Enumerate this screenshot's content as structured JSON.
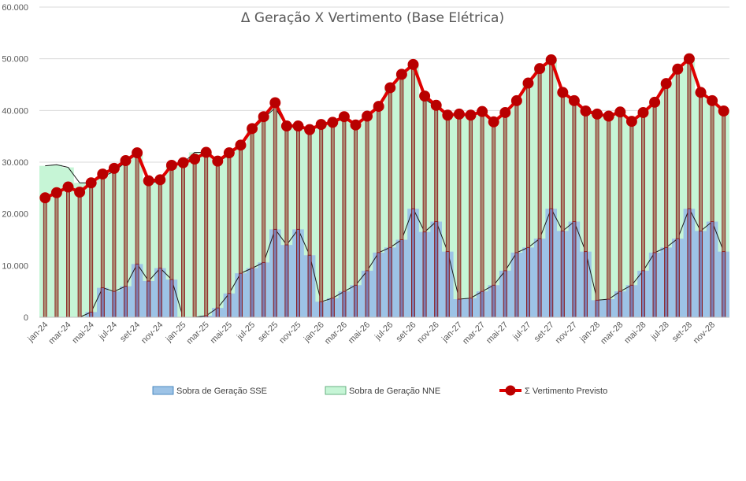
{
  "chart_data": {
    "type": "area",
    "title": "Δ Geração X Vertimento (Base Elétrica)",
    "ylim": [
      0,
      60000
    ],
    "yticks": [
      "0",
      "10.000",
      "20.000",
      "30.000",
      "40.000",
      "50.000",
      "60.000"
    ],
    "ytick_values": [
      0,
      10000,
      20000,
      30000,
      40000,
      50000,
      60000
    ],
    "grid": true,
    "legend_position": "bottom",
    "categories": [
      "jan-24",
      "fev-24",
      "mar-24",
      "abr-24",
      "mai-24",
      "jun-24",
      "jul-24",
      "ago-24",
      "set-24",
      "out-24",
      "nov-24",
      "dez-24",
      "jan-25",
      "fev-25",
      "mar-25",
      "abr-25",
      "mai-25",
      "jun-25",
      "jul-25",
      "ago-25",
      "set-25",
      "out-25",
      "nov-25",
      "dez-25",
      "jan-26",
      "fev-26",
      "mar-26",
      "abr-26",
      "mai-26",
      "jun-26",
      "jul-26",
      "ago-26",
      "set-26",
      "out-26",
      "nov-26",
      "dez-26",
      "jan-27",
      "fev-27",
      "mar-27",
      "abr-27",
      "mai-27",
      "jun-27",
      "jul-27",
      "ago-27",
      "set-27",
      "out-27",
      "nov-27",
      "dez-27",
      "jan-28",
      "fev-28",
      "mar-28",
      "abr-28",
      "mai-28",
      "jun-28",
      "jul-28",
      "ago-28",
      "set-28",
      "out-28",
      "nov-28",
      "dez-28"
    ],
    "xtick_labels": [
      "jan-24",
      "mar-24",
      "mai-24",
      "jul-24",
      "set-24",
      "nov-24",
      "jan-25",
      "mar-25",
      "mai-25",
      "jul-25",
      "set-25",
      "nov-25",
      "jan-26",
      "mar-26",
      "mai-26",
      "jul-26",
      "set-26",
      "nov-26",
      "jan-27",
      "mar-27",
      "mai-27",
      "jul-27",
      "set-27",
      "nov-27",
      "jan-28",
      "mar-28",
      "mai-28",
      "jul-28",
      "set-28",
      "nov-28"
    ],
    "series": [
      {
        "name": "Sobra de Geração SSE",
        "type": "area",
        "color": "#9DC3E6",
        "values": [
          0,
          0,
          0,
          0,
          1000,
          5700,
          5000,
          6000,
          10300,
          7000,
          9500,
          7300,
          0,
          0,
          300,
          1800,
          4600,
          8500,
          9500,
          10600,
          17000,
          14000,
          17000,
          12000,
          3000,
          3700,
          5000,
          6200,
          9000,
          12500,
          13500,
          15000,
          21000,
          16500,
          18500,
          12700,
          3500,
          3700,
          5000,
          6200,
          9000,
          12500,
          13500,
          15200,
          21000,
          16700,
          18500,
          12700,
          3300,
          3500,
          5000,
          6200,
          9000,
          12500,
          13500,
          15200,
          21000,
          16700,
          18500,
          12700
        ]
      },
      {
        "name": "Sobra de Geração NNE",
        "type": "area",
        "color": "#C6F5D6",
        "values": [
          29300,
          29500,
          29000,
          26000,
          26000,
          27200,
          28200,
          30000,
          31500,
          26000,
          26300,
          29200,
          29800,
          31900,
          31900,
          30000,
          31400,
          33200,
          36000,
          38500,
          40500,
          36900,
          37000,
          36200,
          37200,
          37500,
          38500,
          37000,
          38800,
          40600,
          44200,
          46900,
          48700,
          42200,
          40700,
          38800,
          39300,
          38900,
          39800,
          37700,
          39500,
          41700,
          45200,
          48000,
          49800,
          43600,
          41700,
          39800,
          39100,
          38800,
          39800,
          37700,
          39500,
          41700,
          45200,
          48000,
          49800,
          43600,
          41700,
          39800
        ]
      },
      {
        "name": "Σ Vertimento Previsto",
        "type": "line",
        "color": "#E00000",
        "values": [
          23100,
          24100,
          25200,
          24200,
          26000,
          27700,
          28800,
          30300,
          31800,
          26400,
          26600,
          29400,
          29900,
          30600,
          31900,
          30200,
          31800,
          33300,
          36500,
          38800,
          41500,
          37000,
          37000,
          36300,
          37300,
          37700,
          38800,
          37200,
          38900,
          40800,
          44400,
          47000,
          48900,
          42800,
          41000,
          39100,
          39300,
          39100,
          39800,
          37800,
          39600,
          41900,
          45300,
          48100,
          49800,
          43500,
          41900,
          39900,
          39300,
          38900,
          39700,
          37900,
          39600,
          41600,
          45200,
          48000,
          50000,
          43500,
          41900,
          39900
        ]
      }
    ]
  }
}
